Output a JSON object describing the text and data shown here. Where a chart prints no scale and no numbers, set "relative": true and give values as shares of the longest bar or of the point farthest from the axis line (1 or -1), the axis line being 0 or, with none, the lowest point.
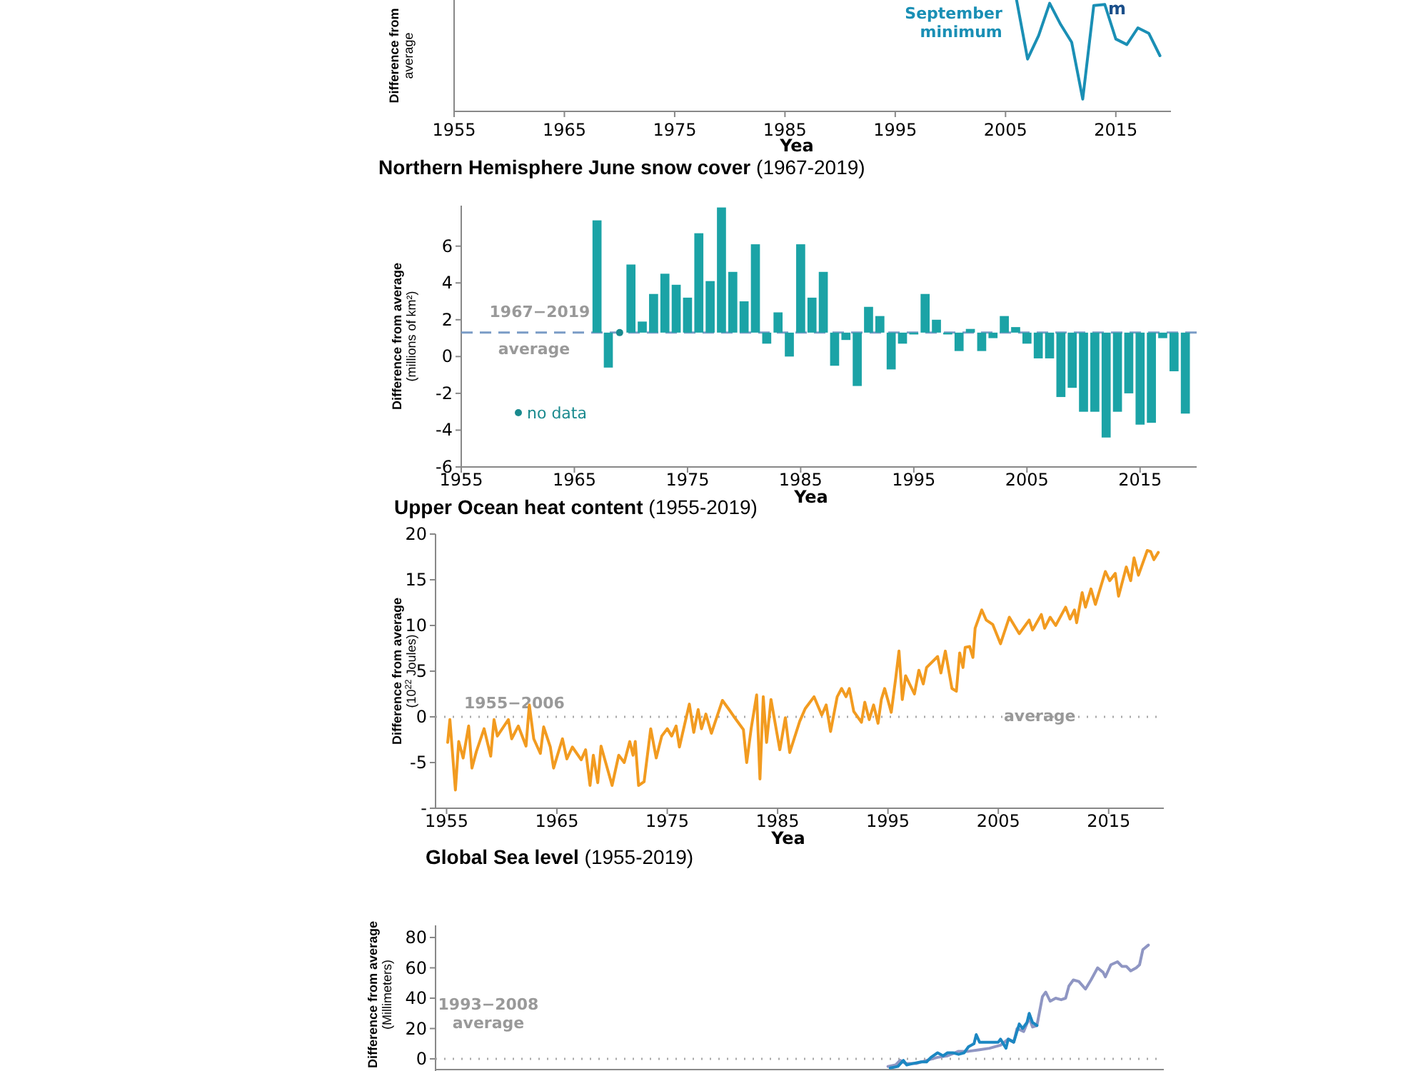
{
  "chart_data": [
    {
      "type": "line",
      "ylabel": "Difference from average",
      "xlabel": "Yea",
      "relative": true,
      "xlim": [
        1955,
        2020
      ],
      "xticks": [
        1955,
        1965,
        1975,
        1985,
        1995,
        2005,
        2015
      ],
      "legend": false,
      "series": [
        {
          "name": "September minimum",
          "color": "#1a8fb5",
          "x": [
            2006,
            2007,
            2008,
            2009,
            2010,
            2011,
            2012,
            2013,
            2014,
            2015,
            2016,
            2017,
            2018,
            2019
          ],
          "values": [
            1.0,
            0.47,
            0.68,
            0.97,
            0.78,
            0.62,
            0.11,
            0.95,
            0.96,
            0.65,
            0.6,
            0.75,
            0.7,
            0.5
          ]
        }
      ],
      "annotations": [
        "m"
      ]
    },
    {
      "type": "bar",
      "title": "Northern Hemisphere June snow cover",
      "subtitle": "(1967-2019)",
      "ylabel": "Difference from average (millions of km²)",
      "xlabel": "Yea",
      "xlim": [
        1955,
        2020
      ],
      "xticks": [
        1955,
        1965,
        1975,
        1985,
        1995,
        2005,
        2015
      ],
      "ylim": [
        -6,
        8.2
      ],
      "yticks": [
        -6,
        -4,
        -2,
        0,
        2,
        4,
        6
      ],
      "legend": "bottom left",
      "x": [
        1967,
        1968,
        1969,
        1970,
        1971,
        1972,
        1973,
        1974,
        1975,
        1976,
        1977,
        1978,
        1979,
        1980,
        1981,
        1982,
        1983,
        1984,
        1985,
        1986,
        1987,
        1988,
        1989,
        1990,
        1991,
        1992,
        1993,
        1994,
        1995,
        1996,
        1997,
        1998,
        1999,
        2000,
        2001,
        2002,
        2003,
        2004,
        2005,
        2006,
        2007,
        2008,
        2009,
        2010,
        2011,
        2012,
        2013,
        2014,
        2015,
        2016,
        2017,
        2018,
        2019
      ],
      "series": [
        {
          "color": "#1ba3a6",
          "base": [
            1.3,
            1.3,
            null,
            1.3,
            1.3,
            1.3,
            1.3,
            1.3,
            1.3,
            1.3,
            1.3,
            1.3,
            1.3,
            1.3,
            1.3,
            1.3,
            1.3,
            1.3,
            1.3,
            1.3,
            1.3,
            1.3,
            1.3,
            1.3,
            1.3,
            1.3,
            1.3,
            1.3,
            1.3,
            1.3,
            1.3,
            1.3,
            1.3,
            1.3,
            1.3,
            1.3,
            1.3,
            1.3,
            1.3,
            1.3,
            1.3,
            1.3,
            1.3,
            1.3,
            1.3,
            1.3,
            1.3,
            1.3,
            1.3,
            1.3,
            1.3,
            1.3,
            1.3
          ],
          "values": [
            6.1,
            -1.9,
            null,
            3.7,
            0.6,
            2.1,
            3.2,
            2.6,
            1.9,
            5.4,
            2.8,
            6.8,
            3.3,
            1.7,
            4.8,
            -0.6,
            1.1,
            -1.3,
            4.8,
            1.9,
            3.3,
            -1.8,
            -0.4,
            -2.9,
            1.4,
            0.9,
            -2.0,
            -0.6,
            -0.1,
            2.1,
            0.7,
            -0.1,
            -1.0,
            0.2,
            -1.0,
            -0.3,
            0.9,
            0.3,
            -0.6,
            -1.4,
            -1.4,
            -3.5,
            -3.0,
            -4.3,
            -4.3,
            -5.7,
            -4.3,
            -3.3,
            -5.0,
            -4.9,
            -0.3,
            -2.1,
            -4.4
          ]
        },
        {
          "type": "scatter",
          "name": "no data",
          "color": "#1a8a8e",
          "x": [
            1969
          ],
          "values": [
            1.3
          ]
        }
      ],
      "ref_lines": [
        {
          "axis": "y",
          "value": 1.3,
          "label": "1967−2019 average",
          "color": "#7a9cc6",
          "line_style": "dashed"
        }
      ]
    },
    {
      "type": "line",
      "title": "Upper Ocean heat content",
      "subtitle": "(1955-2019)",
      "ylabel": "Difference from average (10$^{22}$ Joules)",
      "xlabel": "Yea",
      "xlim": [
        1954,
        2020
      ],
      "xticks": [
        1955,
        1965,
        1975,
        1985,
        1995,
        2005,
        2015
      ],
      "ylim": [
        -10,
        20
      ],
      "yticks": [
        {
          "value": -10,
          "label": "-"
        },
        -5,
        0,
        5,
        10,
        15,
        20
      ],
      "series": [
        {
          "color": "#f29b20",
          "x": [
            1955.1,
            1955.3,
            1955.8,
            1956.1,
            1956.5,
            1957.0,
            1957.3,
            1957.7,
            1958.4,
            1959.0,
            1959.3,
            1959.6,
            1960.6,
            1960.9,
            1961.5,
            1962.2,
            1962.5,
            1962.9,
            1963.5,
            1963.8,
            1964.4,
            1964.7,
            1965.5,
            1965.9,
            1966.4,
            1967.2,
            1967.6,
            1968.0,
            1968.3,
            1968.7,
            1969.0,
            1970.0,
            1970.6,
            1971.1,
            1971.6,
            1971.9,
            1972.1,
            1972.4,
            1972.9,
            1973.5,
            1974.0,
            1974.5,
            1975.0,
            1975.4,
            1975.8,
            1976.1,
            1977.0,
            1977.4,
            1977.8,
            1978.1,
            1978.5,
            1979.0,
            1980.0,
            1980.6,
            1981.0,
            1981.9,
            1982.2,
            1982.6,
            1983.1,
            1983.4,
            1983.7,
            1984.0,
            1984.4,
            1985.2,
            1985.7,
            1986.1,
            1987.0,
            1987.5,
            1988.3,
            1989.0,
            1989.4,
            1989.8,
            1990.4,
            1990.8,
            1991.2,
            1991.5,
            1991.9,
            1992.6,
            1992.9,
            1993.3,
            1993.7,
            1994.1,
            1994.4,
            1994.7,
            1995.3,
            1995.7,
            1996.0,
            1996.3,
            1996.6,
            1997.4,
            1997.8,
            1998.2,
            1998.5,
            1999.5,
            1999.8,
            2000.2,
            2000.8,
            2001.2,
            2001.5,
            2001.8,
            2002.0,
            2002.4,
            2002.7,
            2002.9,
            2003.5,
            2003.9,
            2004.5,
            2005.2,
            2006.0,
            2006.9,
            2007.8,
            2008.1,
            2008.9,
            2009.2,
            2009.7,
            2010.2,
            2011.1,
            2011.5,
            2011.9,
            2012.1,
            2012.6,
            2012.9,
            2013.4,
            2013.8,
            2014.7,
            2015.1,
            2015.6,
            2015.9,
            2016.6,
            2017.0,
            2017.3,
            2017.7,
            2018.5,
            2018.8,
            2019.1,
            2019.5
          ],
          "values": [
            -2.8,
            -0.3,
            -8.0,
            -2.7,
            -4.5,
            -1.0,
            -5.6,
            -3.8,
            -1.3,
            -4.3,
            -0.3,
            -2.1,
            -0.3,
            -2.4,
            -1.0,
            -3.2,
            1.3,
            -2.4,
            -4.0,
            -1.1,
            -3.3,
            -5.6,
            -2.4,
            -4.6,
            -3.3,
            -4.7,
            -3.6,
            -7.5,
            -4.2,
            -7.2,
            -3.2,
            -7.5,
            -4.2,
            -5.0,
            -2.7,
            -4.2,
            -2.7,
            -7.5,
            -7.1,
            -1.3,
            -4.5,
            -2.1,
            -1.3,
            -2.1,
            -1.0,
            -3.3,
            1.4,
            -1.7,
            0.8,
            -1.3,
            0.3,
            -1.8,
            1.8,
            0.8,
            0.1,
            -1.4,
            -5.0,
            -1.3,
            2.4,
            -6.8,
            2.2,
            -2.8,
            1.9,
            -3.6,
            -0.1,
            -3.9,
            -0.5,
            0.9,
            2.2,
            0.2,
            1.3,
            -1.6,
            2.2,
            3.1,
            2.2,
            3.1,
            0.6,
            -0.6,
            1.6,
            -0.3,
            1.3,
            -0.7,
            1.9,
            3.1,
            0.5,
            4.2,
            7.2,
            1.9,
            4.5,
            2.5,
            5.1,
            3.6,
            5.4,
            6.6,
            4.8,
            7.2,
            3.1,
            2.8,
            7.0,
            5.4,
            7.6,
            7.7,
            6.5,
            9.7,
            11.7,
            10.6,
            10.1,
            8.0,
            10.9,
            9.1,
            10.6,
            9.5,
            11.2,
            9.7,
            10.9,
            10.0,
            12.0,
            10.7,
            11.7,
            10.3,
            13.6,
            12.0,
            14.0,
            12.3,
            15.9,
            14.9,
            15.7,
            13.2,
            16.4,
            14.9,
            17.4,
            15.5,
            18.2,
            18.1,
            17.2,
            18.0
          ]
        }
      ],
      "ref_lines": [
        {
          "axis": "y",
          "value": 0,
          "label": "1955−2006 average",
          "color": "#aaaaaa",
          "line_style": "dotted"
        }
      ]
    },
    {
      "type": "line",
      "title": "Global Sea level",
      "subtitle": "(1955-2019)",
      "ylabel": "Difference from average (Millimeters)",
      "xlim": [
        1954,
        2020
      ],
      "ylim": [
        -8,
        88
      ],
      "yticks": [
        0,
        20,
        40,
        60,
        80
      ],
      "tick_labels": "y",
      "series": [
        {
          "color": "#8f96c3",
          "x": [
            1995.0,
            1995.7,
            1996.1,
            1996.6,
            1997.6,
            1998.5,
            1999.5,
            2000.4,
            2001.4,
            2002.3,
            2003.3,
            2004.2,
            2005.2,
            2005.9,
            2006.4,
            2006.7,
            2007.3,
            2007.8,
            2008.1,
            2008.5,
            2009.0,
            2009.3,
            2009.7,
            2010.2,
            2010.7,
            2011.1,
            2011.4,
            2011.8,
            2012.3,
            2012.9,
            2013.4,
            2014.0,
            2014.5,
            2014.7,
            2015.2,
            2015.8,
            2016.2,
            2016.6,
            2017.0,
            2017.5,
            2017.8,
            2018.1,
            2018.6
          ],
          "values": [
            -5,
            -4,
            -1,
            -3,
            -3,
            -1,
            1,
            2,
            5,
            5,
            6,
            7,
            9,
            13,
            11,
            20,
            18,
            27,
            21,
            22,
            41,
            44,
            38,
            40,
            39,
            40,
            48,
            52,
            51,
            46,
            52,
            60,
            57,
            54,
            62,
            64,
            61,
            61,
            58,
            60,
            62,
            72,
            75
          ]
        },
        {
          "color": "#1c87c2",
          "x": [
            1995.2,
            1995.9,
            1996.4,
            1996.7,
            1997.3,
            1998.0,
            1998.5,
            1998.9,
            1999.5,
            2000.0,
            2000.4,
            2000.9,
            2001.4,
            2001.9,
            2002.3,
            2002.8,
            2003.0,
            2003.3,
            2004.0,
            2004.5,
            2005.0,
            2005.2,
            2005.7,
            2005.9,
            2006.4,
            2006.9,
            2007.2,
            2007.6,
            2007.8,
            2008.1,
            2008.5
          ],
          "values": [
            -6,
            -5,
            -1,
            -4,
            -3,
            -2,
            -2,
            1,
            4,
            2,
            4,
            4,
            3,
            4,
            8,
            10,
            16,
            11,
            11,
            11,
            11,
            13,
            7,
            13,
            11,
            23,
            20,
            24,
            30,
            24,
            22
          ]
        }
      ],
      "ref_lines": [
        {
          "axis": "y",
          "value": 0,
          "label": "1993−2008 average",
          "color": "#aaaaaa",
          "line_style": "dotted"
        }
      ]
    }
  ]
}
